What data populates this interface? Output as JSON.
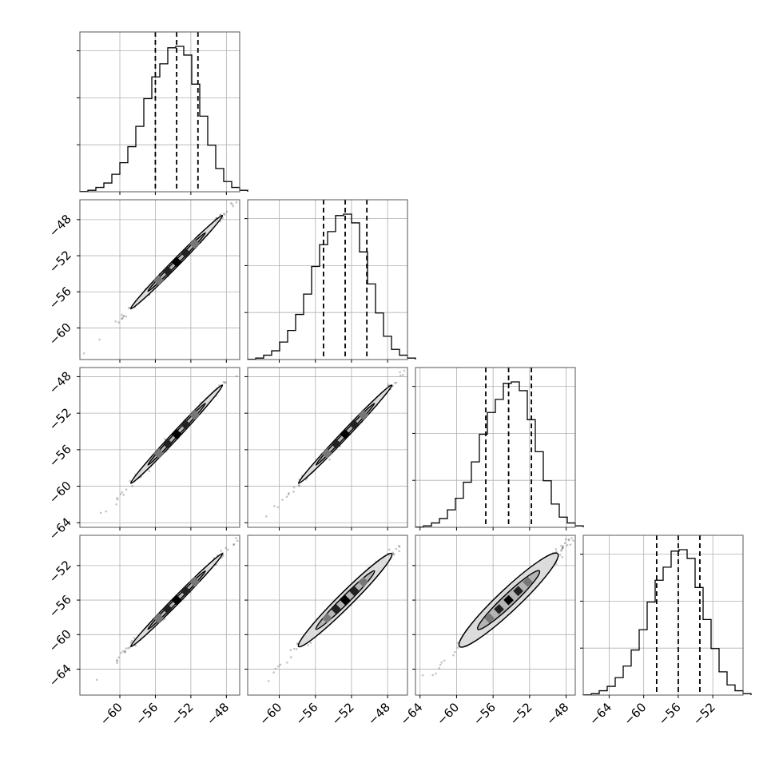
{
  "chart_data": {
    "type": "corner",
    "grid": true,
    "n_params": 4,
    "axis_ticks": [
      {
        "labels": [
          "−60",
          "−56",
          "−52",
          "−48"
        ],
        "values": [
          -60,
          -56,
          -52,
          -48
        ],
        "range": [
          -64.5,
          -46.5
        ]
      },
      {
        "labels": [
          "−60",
          "−56",
          "−52",
          "−48"
        ],
        "values": [
          -60,
          -56,
          -52,
          -48
        ],
        "range": [
          -63.5,
          -45.8
        ]
      },
      {
        "labels": [
          "−64",
          "−60",
          "−56",
          "−52",
          "−48"
        ],
        "values": [
          -64,
          -60,
          -56,
          -52,
          -48
        ],
        "range": [
          -64.5,
          -47.0
        ]
      },
      {
        "labels": [
          "−64",
          "−60",
          "−56",
          "−52"
        ],
        "values": [
          -64,
          -60,
          -56,
          -52
        ],
        "range": [
          -67.0,
          -48.5
        ]
      }
    ],
    "y_ticks": [
      {
        "labels": [
          "−48",
          "−52",
          "−56",
          "−60"
        ],
        "values": [
          -48,
          -52,
          -56,
          -60
        ]
      },
      {
        "labels": [
          "−48",
          "−52",
          "−56",
          "−60",
          "−64"
        ],
        "values": [
          -48,
          -52,
          -56,
          -60,
          -64
        ]
      },
      {
        "labels": [
          "−52",
          "−56",
          "−60",
          "−64"
        ],
        "values": [
          -52,
          -56,
          -60,
          -64
        ]
      }
    ],
    "y_ranges": [
      [
        -63.5,
        -45.8
      ],
      [
        -64.5,
        -47.0
      ],
      [
        -67.0,
        -48.5
      ]
    ],
    "histograms": [
      {
        "param": 0,
        "max_count": 1.0,
        "edges_start": -64.5,
        "bin_width": 0.9,
        "counts": [
          0.002,
          0.01,
          0.03,
          0.06,
          0.12,
          0.2,
          0.31,
          0.45,
          0.64,
          0.79,
          0.88,
          0.99,
          1.0,
          0.94,
          0.74,
          0.52,
          0.32,
          0.16,
          0.07,
          0.03,
          0.01
        ],
        "quantiles": [
          -56.0,
          -53.6,
          -51.2
        ]
      },
      {
        "param": 1,
        "max_count": 1.0,
        "edges_start": -63.5,
        "bin_width": 0.885,
        "counts": [
          0.002,
          0.01,
          0.03,
          0.06,
          0.12,
          0.2,
          0.31,
          0.45,
          0.64,
          0.79,
          0.88,
          0.99,
          1.0,
          0.94,
          0.74,
          0.52,
          0.32,
          0.16,
          0.07,
          0.03,
          0.01
        ],
        "quantiles": [
          -55.1,
          -52.7,
          -50.3
        ]
      },
      {
        "param": 2,
        "max_count": 1.0,
        "edges_start": -64.5,
        "bin_width": 0.875,
        "counts": [
          0.002,
          0.01,
          0.03,
          0.06,
          0.12,
          0.2,
          0.31,
          0.45,
          0.64,
          0.79,
          0.88,
          0.99,
          1.0,
          0.94,
          0.74,
          0.52,
          0.32,
          0.16,
          0.07,
          0.03,
          0.01
        ],
        "quantiles": [
          -56.8,
          -54.3,
          -51.8
        ]
      },
      {
        "param": 3,
        "max_count": 1.0,
        "edges_start": -67.0,
        "bin_width": 0.925,
        "counts": [
          0.002,
          0.01,
          0.03,
          0.06,
          0.12,
          0.2,
          0.31,
          0.45,
          0.64,
          0.79,
          0.88,
          0.99,
          1.0,
          0.94,
          0.74,
          0.52,
          0.32,
          0.16,
          0.07,
          0.03,
          0.01
        ],
        "quantiles": [
          -58.5,
          -56.0,
          -53.5
        ]
      }
    ],
    "pair_plots": [
      {
        "row": 1,
        "col": 0,
        "center": [
          -53.6,
          -52.7
        ],
        "spread": [
          2.4,
          2.4
        ],
        "corr": 0.995
      },
      {
        "row": 2,
        "col": 0,
        "center": [
          -53.6,
          -54.3
        ],
        "spread": [
          2.4,
          2.5
        ],
        "corr": 0.995
      },
      {
        "row": 2,
        "col": 1,
        "center": [
          -52.7,
          -54.3
        ],
        "spread": [
          2.4,
          2.5
        ],
        "corr": 0.995
      },
      {
        "row": 3,
        "col": 0,
        "center": [
          -53.6,
          -56.0
        ],
        "spread": [
          2.4,
          2.5
        ],
        "corr": 0.995
      },
      {
        "row": 3,
        "col": 1,
        "center": [
          -52.7,
          -56.0
        ],
        "spread": [
          2.4,
          2.5
        ],
        "corr": 0.99
      },
      {
        "row": 3,
        "col": 2,
        "center": [
          -54.3,
          -56.0
        ],
        "spread": [
          2.5,
          2.5
        ],
        "corr": 0.985
      }
    ]
  }
}
